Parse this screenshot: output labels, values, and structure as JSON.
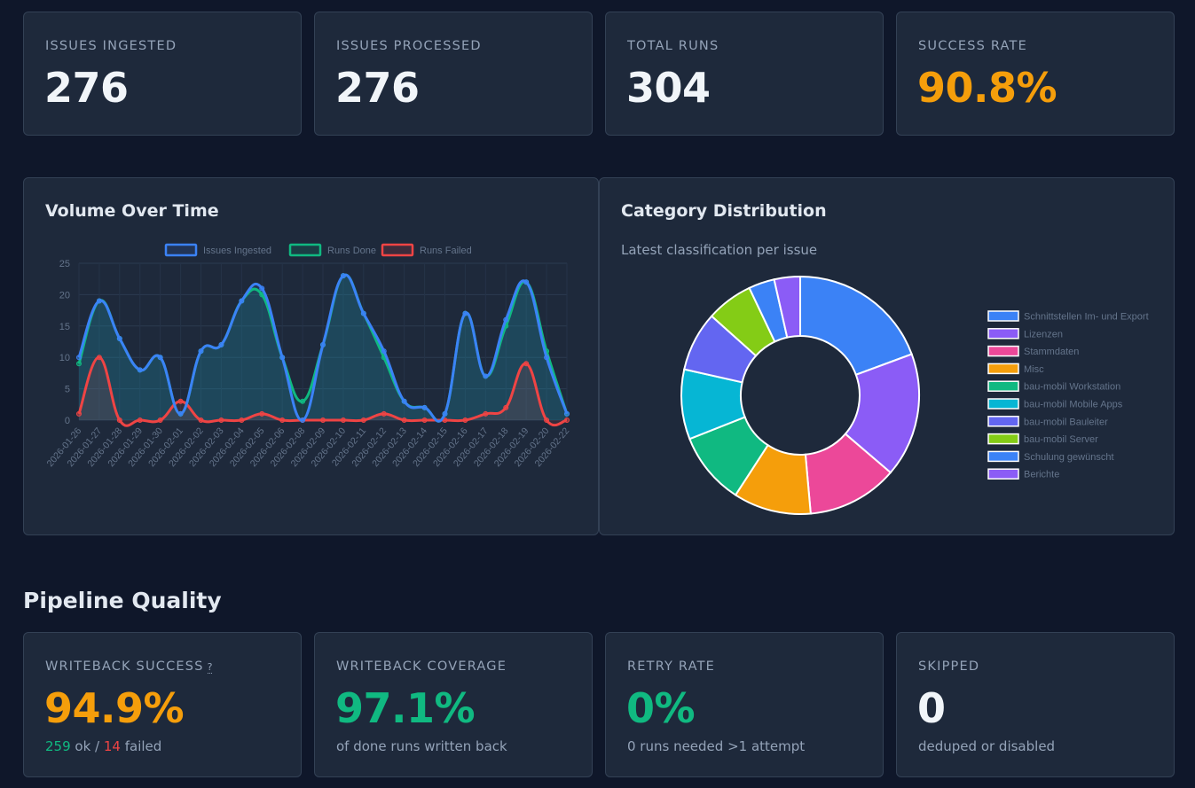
{
  "stats": [
    {
      "name": "issues-ingested",
      "label": "ISSUES INGESTED",
      "value": "276",
      "color": "#f1f5f9"
    },
    {
      "name": "issues-processed",
      "label": "ISSUES PROCESSED",
      "value": "276",
      "color": "#f1f5f9"
    },
    {
      "name": "total-runs",
      "label": "TOTAL RUNS",
      "value": "304",
      "color": "#f1f5f9"
    },
    {
      "name": "success-rate",
      "label": "SUCCESS RATE",
      "value": "90.8%",
      "color": "#f59e0b"
    }
  ],
  "volume": {
    "title": "Volume Over Time"
  },
  "category": {
    "title": "Category Distribution",
    "subtitle": "Latest classification per issue"
  },
  "quality": {
    "title": "Pipeline Quality",
    "writeback_success": {
      "label": "WRITEBACK SUCCESS",
      "help": "?",
      "value": "94.9%",
      "value_color": "#f59e0b",
      "ok_count": "259",
      "ok_text": " ok / ",
      "failed_count": "14",
      "failed_text": " failed"
    },
    "writeback_coverage": {
      "label": "WRITEBACK COVERAGE",
      "value": "97.1%",
      "value_color": "#10b981",
      "sub": "of done runs written back"
    },
    "retry_rate": {
      "label": "RETRY RATE",
      "value": "0%",
      "value_color": "#10b981",
      "sub": "0 runs needed >1 attempt"
    },
    "skipped": {
      "label": "SKIPPED",
      "value": "0",
      "value_color": "#f1f5f9",
      "sub": "deduped or disabled"
    }
  },
  "chart_data": [
    {
      "type": "line",
      "x": [
        "2026-01-26",
        "2026-01-27",
        "2026-01-28",
        "2026-01-29",
        "2026-01-30",
        "2026-02-01",
        "2026-02-02",
        "2026-02-03",
        "2026-02-04",
        "2026-02-05",
        "2026-02-06",
        "2026-02-08",
        "2026-02-09",
        "2026-02-10",
        "2026-02-11",
        "2026-02-12",
        "2026-02-13",
        "2026-02-14",
        "2026-02-15",
        "2026-02-16",
        "2026-02-17",
        "2026-02-18",
        "2026-02-19",
        "2026-02-20",
        "2026-02-22"
      ],
      "series": [
        {
          "name": "Issues Ingested",
          "color": "#3b82f6",
          "values": [
            10,
            19,
            13,
            8,
            10,
            1,
            11,
            12,
            19,
            21,
            10,
            0,
            12,
            23,
            17,
            11,
            3,
            2,
            1,
            17,
            7,
            16,
            22,
            10,
            1
          ]
        },
        {
          "name": "Runs Done",
          "color": "#10b981",
          "values": [
            9,
            19,
            13,
            8,
            10,
            1,
            11,
            12,
            19,
            20,
            10,
            3,
            12,
            23,
            17,
            10,
            3,
            2,
            1,
            17,
            7,
            15,
            22,
            11,
            1
          ]
        },
        {
          "name": "Runs Failed",
          "color": "#ef4444",
          "values": [
            1,
            10,
            0,
            0,
            0,
            3,
            0,
            0,
            0,
            1,
            0,
            0,
            0,
            0,
            0,
            1,
            0,
            0,
            0,
            0,
            1,
            2,
            9,
            0,
            0
          ]
        }
      ],
      "ylim": [
        0,
        25
      ],
      "yticks": [
        0,
        5,
        10,
        15,
        20,
        25
      ],
      "legend": "top",
      "grid": true
    },
    {
      "type": "pie",
      "donut": true,
      "legend": "right",
      "labels": [
        "Schnittstellen Im- und Export",
        "Lizenzen",
        "Stammdaten",
        "Misc",
        "bau-mobil Workstation",
        "bau-mobil Mobile Apps",
        "bau-mobil Bauleiter",
        "bau-mobil Server",
        "Schulung gewünscht",
        "Berichte"
      ],
      "values": [
        55,
        48,
        35,
        30,
        28,
        27,
        23,
        18,
        10,
        10
      ],
      "colors": [
        "#3b82f6",
        "#8b5cf6",
        "#ec4899",
        "#f59e0b",
        "#10b981",
        "#06b6d4",
        "#6366f1",
        "#84cc16",
        "#3b82f6",
        "#8b5cf6"
      ]
    }
  ]
}
